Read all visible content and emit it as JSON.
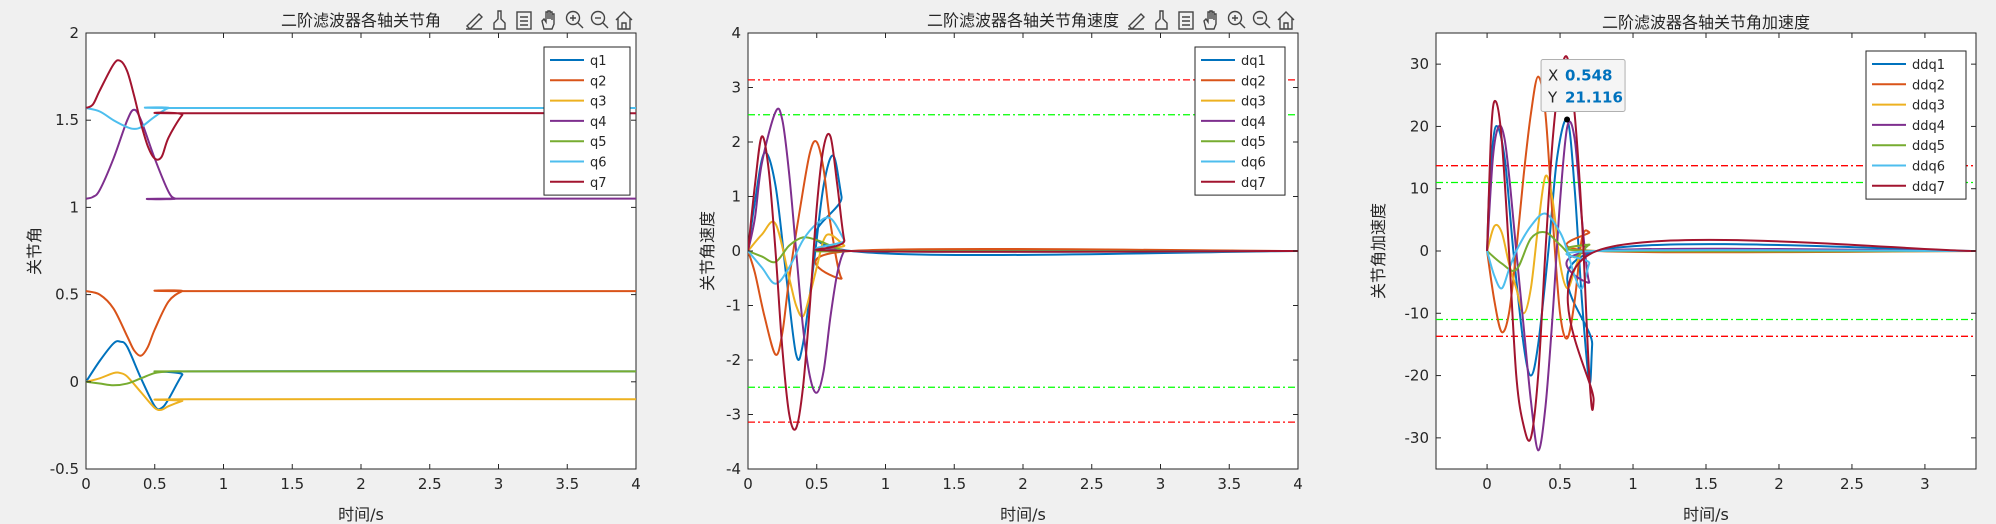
{
  "chart_data": [
    {
      "type": "line",
      "title": "二阶滤波器各轴关节角",
      "xlabel": "时间/s",
      "ylabel": "关节角",
      "xlim": [
        0,
        4
      ],
      "ylim": [
        -0.5,
        2
      ],
      "xticks": [
        "0",
        "0.5",
        "1",
        "1.5",
        "2",
        "2.5",
        "3",
        "3.5",
        "4"
      ],
      "yticks": [
        "-0.5",
        "0",
        "0.5",
        "1",
        "1.5",
        "2"
      ],
      "grid": false,
      "legend_position": "top-right",
      "series": [
        {
          "name": "q1",
          "color": "#0072bd",
          "x": [
            0,
            0.1,
            0.2,
            0.25,
            0.3,
            0.4,
            0.5,
            0.55,
            0.6,
            0.7,
            0.75,
            4
          ],
          "y": [
            0,
            0.12,
            0.22,
            0.23,
            0.2,
            0.02,
            -0.14,
            -0.15,
            -0.1,
            0.04,
            0.06,
            0.06
          ]
        },
        {
          "name": "q2",
          "color": "#d95319",
          "x": [
            0,
            0.1,
            0.2,
            0.3,
            0.35,
            0.4,
            0.45,
            0.5,
            0.6,
            0.7,
            0.75,
            4
          ],
          "y": [
            0.52,
            0.5,
            0.42,
            0.26,
            0.18,
            0.15,
            0.2,
            0.3,
            0.46,
            0.52,
            0.52,
            0.52
          ]
        },
        {
          "name": "q3",
          "color": "#edb120",
          "x": [
            0,
            0.1,
            0.2,
            0.25,
            0.3,
            0.4,
            0.5,
            0.55,
            0.6,
            0.7,
            0.75,
            4
          ],
          "y": [
            0,
            0.02,
            0.05,
            0.05,
            0.03,
            -0.06,
            -0.15,
            -0.16,
            -0.14,
            -0.11,
            -0.1,
            -0.1
          ]
        },
        {
          "name": "q4",
          "color": "#7e2f8e",
          "x": [
            0,
            0.05,
            0.1,
            0.2,
            0.3,
            0.35,
            0.4,
            0.5,
            0.6,
            0.65,
            0.7,
            4
          ],
          "y": [
            1.05,
            1.06,
            1.1,
            1.28,
            1.5,
            1.56,
            1.5,
            1.28,
            1.09,
            1.05,
            1.05,
            1.05
          ]
        },
        {
          "name": "q5",
          "color": "#77ac30",
          "x": [
            0,
            0.1,
            0.2,
            0.3,
            0.4,
            0.5,
            0.6,
            0.7,
            0.75,
            4
          ],
          "y": [
            0,
            -0.01,
            -0.02,
            -0.01,
            0.02,
            0.05,
            0.06,
            0.06,
            0.06,
            0.06
          ]
        },
        {
          "name": "q6",
          "color": "#4dbeee",
          "x": [
            0,
            0.1,
            0.2,
            0.3,
            0.35,
            0.4,
            0.5,
            0.6,
            0.7,
            4
          ],
          "y": [
            1.57,
            1.55,
            1.5,
            1.46,
            1.45,
            1.46,
            1.52,
            1.57,
            1.57,
            1.57
          ]
        },
        {
          "name": "q7",
          "color": "#a2142f",
          "x": [
            0,
            0.05,
            0.1,
            0.2,
            0.25,
            0.3,
            0.35,
            0.4,
            0.45,
            0.5,
            0.55,
            0.6,
            0.7,
            0.75,
            4
          ],
          "y": [
            1.57,
            1.59,
            1.67,
            1.82,
            1.84,
            1.78,
            1.64,
            1.48,
            1.35,
            1.28,
            1.29,
            1.4,
            1.53,
            1.54,
            1.54
          ]
        }
      ],
      "reference_lines": []
    },
    {
      "type": "line",
      "title": "二阶滤波器各轴关节角速度",
      "xlabel": "时间/s",
      "ylabel": "关节角速度",
      "xlim": [
        0,
        4
      ],
      "ylim": [
        -4,
        4
      ],
      "xticks": [
        "0",
        "0.5",
        "1",
        "1.5",
        "2",
        "2.5",
        "3",
        "3.5",
        "4"
      ],
      "yticks": [
        "-4",
        "-3",
        "-2",
        "-1",
        "0",
        "1",
        "2",
        "3",
        "4"
      ],
      "grid": false,
      "legend_position": "top-right",
      "series": [
        {
          "name": "dq1",
          "color": "#0072bd",
          "x": [
            0,
            0.05,
            0.12,
            0.2,
            0.28,
            0.35,
            0.4,
            0.48,
            0.55,
            0.62,
            0.68,
            0.75,
            4
          ],
          "y": [
            0,
            0.9,
            1.8,
            1.2,
            -0.5,
            -1.9,
            -1.7,
            -0.2,
            1.2,
            1.75,
            1.0,
            0,
            0
          ]
        },
        {
          "name": "dq2",
          "color": "#d95319",
          "x": [
            0,
            0.05,
            0.12,
            0.2,
            0.25,
            0.3,
            0.38,
            0.45,
            0.5,
            0.55,
            0.6,
            0.68,
            0.75,
            4
          ],
          "y": [
            0,
            -0.4,
            -1.2,
            -1.9,
            -1.5,
            -0.5,
            0.8,
            1.8,
            2.0,
            1.5,
            0.5,
            -0.5,
            0,
            0
          ]
        },
        {
          "name": "dq3",
          "color": "#edb120",
          "x": [
            0,
            0.1,
            0.2,
            0.3,
            0.35,
            0.4,
            0.45,
            0.5,
            0.55,
            0.6,
            0.7,
            0.75,
            4
          ],
          "y": [
            0,
            0.3,
            0.5,
            -0.5,
            -1.0,
            -1.2,
            -0.8,
            -0.3,
            0.2,
            0.3,
            0.1,
            0,
            0
          ]
        },
        {
          "name": "dq4",
          "color": "#7e2f8e",
          "x": [
            0,
            0.05,
            0.1,
            0.2,
            0.25,
            0.3,
            0.35,
            0.4,
            0.45,
            0.5,
            0.55,
            0.6,
            0.65,
            0.7,
            0.75,
            4
          ],
          "y": [
            0,
            0.6,
            1.6,
            2.55,
            2.4,
            1.4,
            0,
            -1.4,
            -2.3,
            -2.6,
            -2.2,
            -1.2,
            -0.4,
            0,
            0,
            0
          ]
        },
        {
          "name": "dq5",
          "color": "#77ac30",
          "x": [
            0,
            0.1,
            0.2,
            0.3,
            0.4,
            0.5,
            0.6,
            0.7,
            0.75,
            4
          ],
          "y": [
            0,
            -0.1,
            -0.2,
            0.1,
            0.25,
            0.2,
            0.1,
            0,
            0,
            0
          ]
        },
        {
          "name": "dq6",
          "color": "#4dbeee",
          "x": [
            0,
            0.1,
            0.2,
            0.3,
            0.4,
            0.5,
            0.6,
            0.7,
            0.75,
            4
          ],
          "y": [
            0,
            -0.3,
            -0.6,
            -0.3,
            0.2,
            0.5,
            0.6,
            0.2,
            0,
            0
          ]
        },
        {
          "name": "dq7",
          "color": "#a2142f",
          "x": [
            0,
            0.05,
            0.1,
            0.15,
            0.2,
            0.25,
            0.3,
            0.35,
            0.4,
            0.45,
            0.5,
            0.55,
            0.6,
            0.65,
            0.7,
            0.75,
            4
          ],
          "y": [
            0,
            1.2,
            2.1,
            1.5,
            0,
            -1.8,
            -3.0,
            -3.25,
            -2.5,
            -1.0,
            0.8,
            1.9,
            2.1,
            1.2,
            0.2,
            0,
            0
          ]
        }
      ],
      "reference_lines": [
        {
          "y": 3.14,
          "color": "#ff0000"
        },
        {
          "y": -3.14,
          "color": "#ff0000"
        },
        {
          "y": 2.5,
          "color": "#00ff00"
        },
        {
          "y": -2.5,
          "color": "#00ff00"
        }
      ]
    },
    {
      "type": "line",
      "title": "二阶滤波器各轴关节角加速度",
      "xlabel": "时间/s",
      "ylabel": "关节角加速度",
      "xlim": [
        -0.35,
        3.35
      ],
      "ylim": [
        -35,
        35
      ],
      "xticks": [
        "0",
        "0.5",
        "1",
        "1.5",
        "2",
        "2.5",
        "3"
      ],
      "yticks": [
        "-30",
        "-20",
        "-10",
        "0",
        "10",
        "20",
        "30"
      ],
      "grid": false,
      "legend_position": "top-right",
      "series": [
        {
          "name": "ddq1",
          "color": "#0072bd",
          "x": [
            0,
            0.02,
            0.06,
            0.12,
            0.18,
            0.25,
            0.3,
            0.35,
            0.42,
            0.48,
            0.55,
            0.6,
            0.65,
            0.7,
            0.72,
            0.75,
            3.35
          ],
          "y": [
            0,
            12,
            20,
            15,
            0,
            -15,
            -20,
            -15,
            0,
            15,
            21,
            10,
            -8,
            -21,
            -15,
            0,
            0
          ]
        },
        {
          "name": "ddq2",
          "color": "#d95319",
          "x": [
            0,
            0.05,
            0.1,
            0.15,
            0.2,
            0.25,
            0.3,
            0.35,
            0.4,
            0.45,
            0.5,
            0.55,
            0.6,
            0.65,
            0.7,
            0.75,
            3.35
          ],
          "y": [
            0,
            -8,
            -13,
            -10,
            0,
            12,
            22,
            28,
            22,
            5,
            -10,
            -14,
            -8,
            2,
            3,
            0,
            0
          ]
        },
        {
          "name": "ddq3",
          "color": "#edb120",
          "x": [
            0,
            0.05,
            0.1,
            0.15,
            0.2,
            0.25,
            0.3,
            0.35,
            0.4,
            0.45,
            0.5,
            0.55,
            0.6,
            0.65,
            0.7,
            0.75,
            3.35
          ],
          "y": [
            0,
            4,
            3,
            -2,
            -6,
            -10,
            -6,
            4,
            12,
            8,
            -2,
            -6,
            -3,
            0,
            1,
            0,
            0
          ]
        },
        {
          "name": "ddq4",
          "color": "#7e2f8e",
          "x": [
            0,
            0.04,
            0.08,
            0.12,
            0.16,
            0.2,
            0.25,
            0.3,
            0.35,
            0.4,
            0.45,
            0.5,
            0.55,
            0.6,
            0.65,
            0.7,
            0.75,
            3.35
          ],
          "y": [
            0,
            15,
            20,
            18,
            10,
            0,
            -12,
            -24,
            -32,
            -25,
            -10,
            8,
            20,
            18,
            5,
            -5,
            0,
            0
          ]
        },
        {
          "name": "ddq5",
          "color": "#77ac30",
          "x": [
            0,
            0.1,
            0.2,
            0.3,
            0.4,
            0.5,
            0.6,
            0.7,
            0.75,
            3.35
          ],
          "y": [
            0,
            -2,
            -3,
            2,
            3,
            1,
            -1,
            1,
            0,
            0
          ]
        },
        {
          "name": "ddq6",
          "color": "#4dbeee",
          "x": [
            0,
            0.05,
            0.1,
            0.15,
            0.2,
            0.3,
            0.4,
            0.5,
            0.55,
            0.6,
            0.65,
            0.7,
            0.75,
            3.35
          ],
          "y": [
            0,
            -4,
            -6,
            -3,
            0,
            4,
            6,
            3,
            0,
            -4,
            -6,
            -2,
            0,
            0
          ]
        },
        {
          "name": "ddq7",
          "color": "#a2142f",
          "x": [
            0,
            0.03,
            0.06,
            0.1,
            0.15,
            0.2,
            0.25,
            0.3,
            0.35,
            0.4,
            0.45,
            0.5,
            0.55,
            0.6,
            0.65,
            0.7,
            0.73,
            0.75,
            3.35
          ],
          "y": [
            0,
            20,
            24,
            18,
            0,
            -20,
            -28,
            -30,
            -20,
            0,
            18,
            28,
            31,
            22,
            5,
            -20,
            -24,
            0,
            0
          ]
        }
      ],
      "reference_lines": [
        {
          "y": 13.7,
          "color": "#ff0000"
        },
        {
          "y": -13.7,
          "color": "#ff0000"
        },
        {
          "y": 11,
          "color": "#00ff00"
        },
        {
          "y": -11,
          "color": "#00ff00"
        }
      ],
      "datatip": {
        "x_label": "X",
        "x_value": "0.548",
        "y_label": "Y",
        "y_value": "21.116",
        "x": 0.548,
        "y": 21.116
      }
    }
  ],
  "toolbar": {
    "icons": [
      "edit-plot-icon",
      "brush-icon",
      "legend-toggle-icon",
      "pan-icon",
      "zoom-in-icon",
      "zoom-out-icon",
      "home-icon"
    ]
  }
}
